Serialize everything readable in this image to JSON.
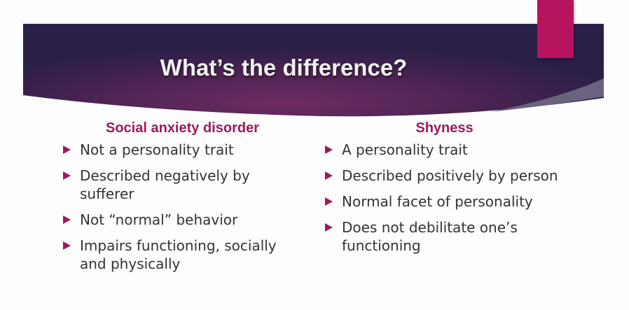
{
  "slide": {
    "title": "What’s the difference?",
    "colors": {
      "banner_dark": "#2a1f47",
      "banner_center": "#6e2c63",
      "accent": "#b7145f",
      "heading": "#9b1b5c",
      "bullet": "#a0195c"
    },
    "left": {
      "heading": "Social anxiety disorder",
      "items": [
        "Not a personality trait",
        "Described negatively by sufferer",
        "Not “normal” behavior",
        "Impairs functioning, socially and physically"
      ]
    },
    "right": {
      "heading": "Shyness",
      "items": [
        "A personality trait",
        "Described positively by person",
        "Normal facet of personality",
        "Does not debilitate one’s functioning"
      ]
    }
  }
}
